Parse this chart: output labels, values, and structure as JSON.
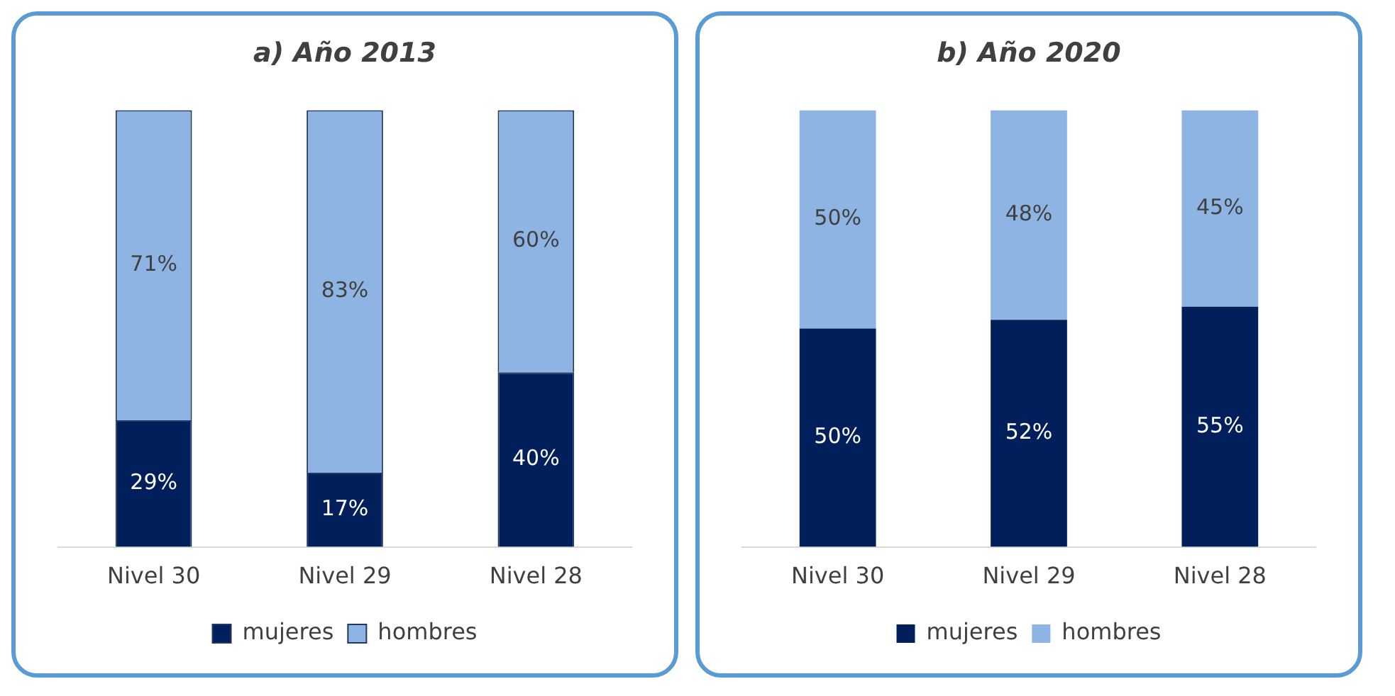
{
  "chart_data": [
    {
      "type": "bar",
      "title": "a) Año 2013",
      "categories": [
        "Nivel 30",
        "Nivel 29",
        "Nivel 28"
      ],
      "stacked": true,
      "legend": "bottom",
      "grid": false,
      "tick_labels": "x",
      "series": [
        {
          "name": "mujeres",
          "color": "#001f5b",
          "values": [
            29,
            17,
            40
          ],
          "value_labels": [
            "29%",
            "17%",
            "40%"
          ]
        },
        {
          "name": "hombres",
          "color": "#8eb4e3",
          "values": [
            71,
            83,
            60
          ],
          "value_labels": [
            "71%",
            "83%",
            "60%"
          ]
        }
      ]
    },
    {
      "type": "bar",
      "title": "b) Año 2020",
      "categories": [
        "Nivel 30",
        "Nivel 29",
        "Nivel 28"
      ],
      "stacked": true,
      "legend": "bottom",
      "grid": false,
      "tick_labels": "x",
      "series": [
        {
          "name": "mujeres",
          "color": "#001f5b",
          "values": [
            50,
            52,
            55
          ],
          "value_labels": [
            "50%",
            "52%",
            "55%"
          ]
        },
        {
          "name": "hombres",
          "color": "#8eb4e3",
          "values": [
            50,
            48,
            45
          ],
          "value_labels": [
            "50%",
            "48%",
            "45%"
          ]
        }
      ]
    }
  ]
}
